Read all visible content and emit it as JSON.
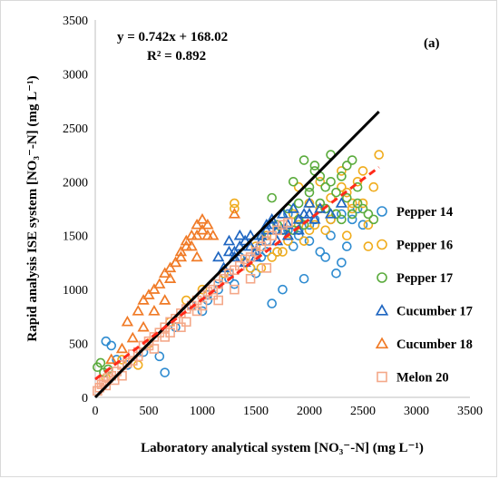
{
  "chart_data": {
    "type": "scatter",
    "xlabel": "Laboratory analytical system [NO₃⁻-N] (mg L⁻¹)",
    "ylabel": "Rapid analysis ISE system [NO₃⁻-N] (mg L⁻¹)",
    "xlim": [
      0,
      3500
    ],
    "ylim": [
      0,
      3500
    ],
    "xticks": [
      0,
      500,
      1000,
      1500,
      2000,
      2500,
      3000,
      3500
    ],
    "yticks": [
      0,
      500,
      1000,
      1500,
      2000,
      2500,
      3000,
      3500
    ],
    "grid": false,
    "legend_position": "right",
    "panel_label": "(a)",
    "annotations": {
      "equation": "y = 0.742x + 168.02",
      "r_squared": "R² = 0.892"
    },
    "one_to_one_line": {
      "x": [
        0,
        2650
      ],
      "y": [
        0,
        2650
      ],
      "color": "#000000"
    },
    "regression_line": {
      "slope": 0.742,
      "intercept": 168.02,
      "x": [
        0,
        2650
      ],
      "color": "#ff2a1a"
    },
    "series": [
      {
        "name": "Pepper 14",
        "marker": "circle",
        "color": "#2e8bd0",
        "x": [
          150,
          300,
          450,
          600,
          650,
          750,
          900,
          1000,
          1050,
          1150,
          1250,
          1300,
          1400,
          1500,
          1550,
          1600,
          1650,
          1700,
          1750,
          1800,
          1850,
          1900,
          1950,
          2000,
          2050,
          2100,
          2150,
          2200,
          2250,
          2300,
          2350,
          2400,
          2450,
          2500,
          1150,
          1450,
          1700,
          1900,
          2150,
          2300,
          1350,
          1600,
          1800,
          2000,
          2200,
          2400,
          1050,
          1250,
          100,
          200
        ],
        "y": [
          480,
          300,
          420,
          380,
          230,
          650,
          850,
          800,
          950,
          1000,
          1100,
          1050,
          1250,
          1150,
          1300,
          1350,
          870,
          1600,
          1000,
          1700,
          1400,
          1550,
          1100,
          1450,
          1650,
          1350,
          1750,
          1500,
          1150,
          1250,
          1400,
          1650,
          1750,
          1600,
          1100,
          1200,
          1350,
          1500,
          1300,
          1700,
          1300,
          1450,
          1550,
          1600,
          1650,
          1700,
          900,
          1150,
          520,
          350
        ]
      },
      {
        "name": "Pepper 16",
        "marker": "circle",
        "color": "#f0ac1c",
        "x": [
          100,
          250,
          400,
          500,
          700,
          850,
          1000,
          1200,
          1300,
          1400,
          1500,
          1600,
          1700,
          1750,
          1850,
          1900,
          2000,
          2050,
          2100,
          2200,
          2250,
          2300,
          2350,
          2400,
          2450,
          2500,
          2550,
          2600,
          2650,
          1900,
          2100,
          2300,
          2500,
          1650,
          1800,
          2000,
          2200,
          2400,
          1550,
          1750,
          1950,
          2150,
          1300,
          1450,
          2550,
          2350
        ],
        "y": [
          180,
          350,
          300,
          500,
          700,
          900,
          1000,
          1150,
          1800,
          1250,
          1400,
          1500,
          1350,
          1550,
          1700,
          1950,
          1800,
          1600,
          2000,
          1850,
          1700,
          2100,
          1900,
          1750,
          2000,
          1800,
          1600,
          1950,
          2250,
          1600,
          1750,
          1950,
          2100,
          1300,
          1450,
          1550,
          1650,
          1800,
          1200,
          1350,
          1450,
          1550,
          1750,
          1200,
          1400,
          1500
        ]
      },
      {
        "name": "Pepper 17",
        "marker": "circle",
        "color": "#5aab3c",
        "x": [
          20,
          50,
          80,
          120,
          1550,
          1650,
          1700,
          1800,
          1850,
          1900,
          1950,
          2000,
          2050,
          2100,
          2150,
          2200,
          2250,
          2300,
          2350,
          2400,
          2450,
          2500,
          2550,
          2600,
          1900,
          2050,
          2200,
          2350,
          2450,
          1750,
          1950,
          2150,
          2300,
          2000,
          2250,
          2400,
          1850,
          2100
        ],
        "y": [
          280,
          320,
          230,
          260,
          1500,
          1850,
          1600,
          1750,
          2000,
          1650,
          2200,
          1900,
          2150,
          1800,
          1950,
          2250,
          1700,
          2050,
          1850,
          2200,
          1950,
          1750,
          1700,
          1650,
          1800,
          2100,
          2000,
          2150,
          1800,
          1550,
          1600,
          1750,
          1650,
          1950,
          1900,
          1700,
          1550,
          2050
        ]
      },
      {
        "name": "Cucumber 17",
        "marker": "triangle",
        "color": "#1f66c1",
        "x": [
          1200,
          1250,
          1300,
          1350,
          1400,
          1450,
          1500,
          1550,
          1600,
          1650,
          1700,
          1750,
          1800,
          1850,
          1900,
          1950,
          2000,
          2050,
          2100,
          2200,
          2300,
          1300,
          1400,
          1500,
          1600,
          1700,
          1800,
          1900,
          2000,
          1150,
          1250,
          1350,
          1450,
          1550,
          1650,
          1750
        ],
        "y": [
          1200,
          1450,
          1300,
          1500,
          1250,
          1400,
          1350,
          1500,
          1550,
          1650,
          1450,
          1700,
          1600,
          1750,
          1550,
          1700,
          1800,
          1650,
          1750,
          1700,
          1800,
          1350,
          1450,
          1300,
          1600,
          1550,
          1500,
          1650,
          1700,
          1300,
          1350,
          1400,
          1500,
          1450,
          1600,
          1550
        ]
      },
      {
        "name": "Cucumber 18",
        "marker": "triangle",
        "color": "#f07a26",
        "x": [
          150,
          250,
          350,
          450,
          550,
          650,
          700,
          750,
          800,
          850,
          900,
          950,
          1000,
          1050,
          1100,
          400,
          500,
          600,
          700,
          800,
          900,
          1000,
          300,
          450,
          550,
          650,
          750,
          850,
          950,
          1300,
          1050,
          950
        ],
        "y": [
          350,
          450,
          550,
          650,
          800,
          900,
          1100,
          1250,
          1350,
          1450,
          1500,
          1600,
          1650,
          1600,
          1500,
          800,
          950,
          1050,
          1200,
          1300,
          1400,
          1550,
          700,
          900,
          1000,
          1150,
          1250,
          1400,
          1500,
          1700,
          1500,
          1300
        ]
      },
      {
        "name": "Melon 20",
        "marker": "square",
        "color": "#f4a889",
        "x": [
          20,
          40,
          60,
          80,
          100,
          120,
          150,
          180,
          200,
          250,
          300,
          350,
          400,
          450,
          500,
          550,
          600,
          650,
          700,
          750,
          800,
          850,
          900,
          950,
          1000,
          1050,
          1100,
          1150,
          1200,
          1250,
          1300,
          1350,
          1400,
          1450,
          1500,
          1550,
          1600,
          1650,
          1700,
          1750,
          1800,
          250,
          400,
          550,
          700,
          850,
          1000,
          1150,
          1300,
          1450,
          1600,
          350,
          500,
          650,
          800,
          950,
          1100
        ],
        "y": [
          60,
          90,
          120,
          150,
          110,
          180,
          200,
          160,
          240,
          300,
          320,
          400,
          420,
          480,
          520,
          560,
          600,
          650,
          700,
          730,
          780,
          820,
          850,
          900,
          950,
          980,
          1000,
          1050,
          1100,
          1150,
          1180,
          1220,
          1280,
          1300,
          1350,
          1400,
          1450,
          1500,
          1550,
          1600,
          1620,
          200,
          380,
          450,
          600,
          700,
          850,
          900,
          1000,
          1100,
          1200,
          340,
          480,
          560,
          650,
          800,
          950
        ]
      }
    ]
  }
}
